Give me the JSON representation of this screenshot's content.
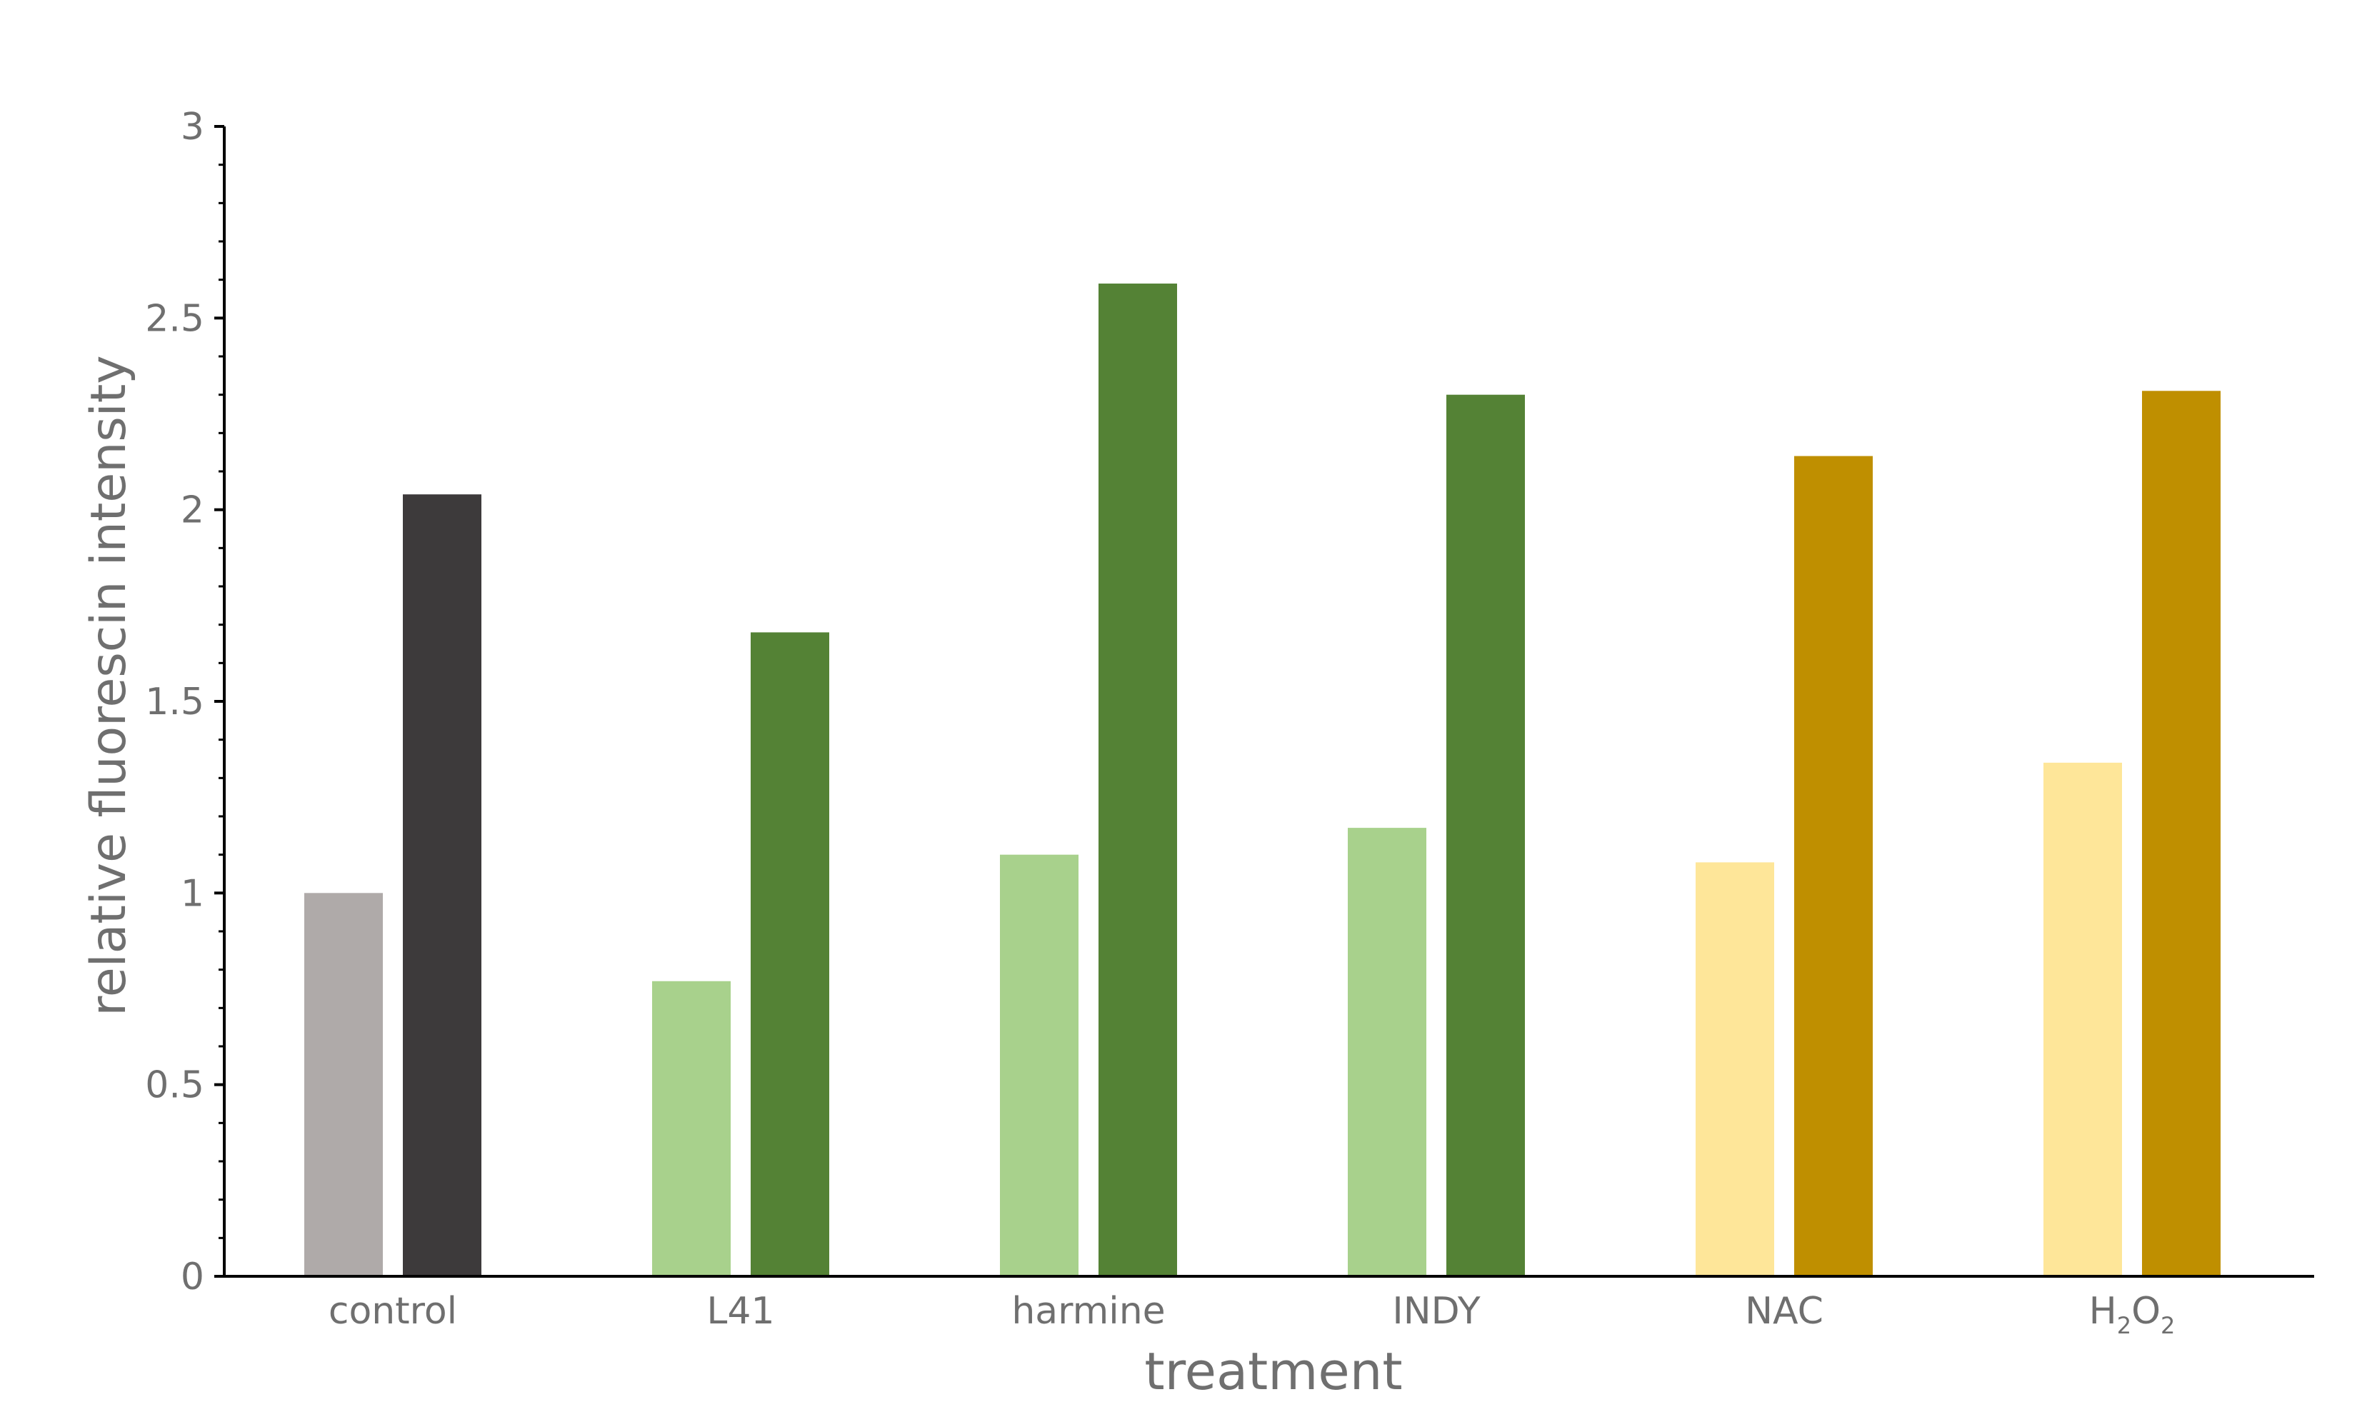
{
  "chart_data": {
    "type": "bar",
    "xlabel": "treatment",
    "ylabel": "relative fluorescin intensity",
    "ylim": [
      0,
      3
    ],
    "y_ticks": [
      "0",
      "0.5",
      "1",
      "1.5",
      "2",
      "2.5",
      "3"
    ],
    "grid": false,
    "categories": [
      {
        "label": "control",
        "values": [
          1.0,
          2.04
        ],
        "colors": [
          "#afaaa9",
          "#3d3a3b"
        ]
      },
      {
        "label": "L41",
        "values": [
          0.77,
          1.68
        ],
        "colors": [
          "#a8d18c",
          "#548235"
        ]
      },
      {
        "label": "harmine",
        "values": [
          1.1,
          2.59
        ],
        "colors": [
          "#a8d18c",
          "#548235"
        ]
      },
      {
        "label": "INDY",
        "values": [
          1.17,
          2.3
        ],
        "colors": [
          "#a8d18c",
          "#548235"
        ]
      },
      {
        "label": "NAC",
        "values": [
          1.08,
          2.14
        ],
        "colors": [
          "#fee699",
          "#bf8f00"
        ]
      },
      {
        "label": "H",
        "label_sub1": "2",
        "label_mid": "O",
        "label_sub2": "2",
        "values": [
          1.34,
          2.31
        ],
        "colors": [
          "#fee699",
          "#bf8f00"
        ]
      }
    ]
  }
}
